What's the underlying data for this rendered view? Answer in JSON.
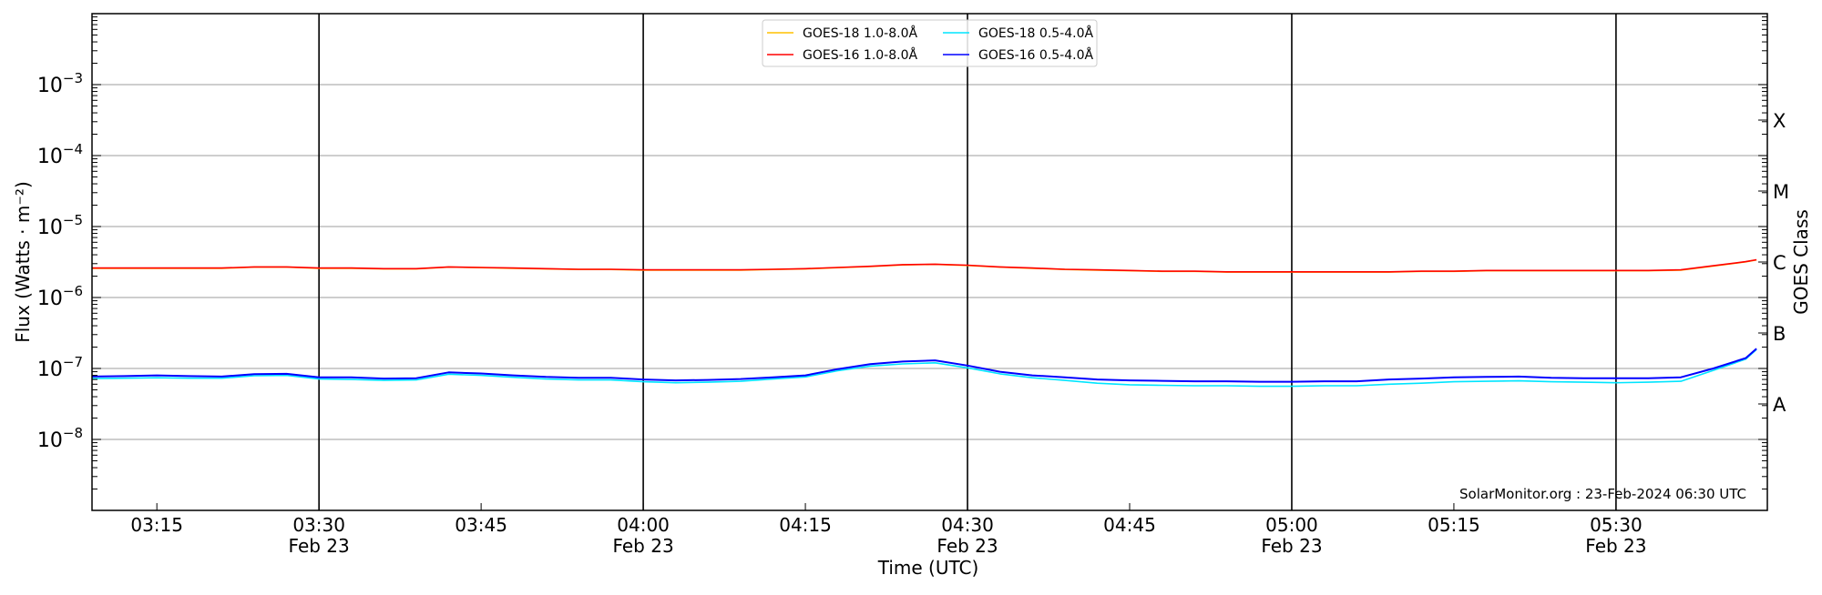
{
  "chart_data": {
    "type": "line",
    "title": "",
    "xlabel": "Time (UTC)",
    "ylabel": "Flux (Watts · m⁻²)",
    "y2label": "GOES Class",
    "yscale": "log",
    "ylim": [
      1e-09,
      0.01
    ],
    "xlim": [
      "03:09",
      "05:44"
    ],
    "grid": {
      "horizontal": true,
      "vertical_major": true
    },
    "legend_placement": "top-center",
    "y_ticks": [
      {
        "exp": -3,
        "label": "10",
        "sup": "−3"
      },
      {
        "exp": -4,
        "label": "10",
        "sup": "−4"
      },
      {
        "exp": -5,
        "label": "10",
        "sup": "−5"
      },
      {
        "exp": -6,
        "label": "10",
        "sup": "−6"
      },
      {
        "exp": -7,
        "label": "10",
        "sup": "−7"
      },
      {
        "exp": -8,
        "label": "10",
        "sup": "−8"
      }
    ],
    "goes_classes": [
      {
        "label": "X",
        "exp": -3.5
      },
      {
        "label": "M",
        "exp": -4.5
      },
      {
        "label": "C",
        "exp": -5.5
      },
      {
        "label": "B",
        "exp": -6.5
      },
      {
        "label": "A",
        "exp": -7.5
      }
    ],
    "x_ticks": [
      {
        "time": "03:15",
        "label": "03:15",
        "sub": ""
      },
      {
        "time": "03:30",
        "label": "03:30",
        "sub": "Feb 23"
      },
      {
        "time": "03:45",
        "label": "03:45",
        "sub": ""
      },
      {
        "time": "04:00",
        "label": "04:00",
        "sub": "Feb 23"
      },
      {
        "time": "04:15",
        "label": "04:15",
        "sub": ""
      },
      {
        "time": "04:30",
        "label": "04:30",
        "sub": "Feb 23"
      },
      {
        "time": "04:45",
        "label": "04:45",
        "sub": ""
      },
      {
        "time": "05:00",
        "label": "05:00",
        "sub": "Feb 23"
      },
      {
        "time": "05:15",
        "label": "05:15",
        "sub": ""
      },
      {
        "time": "05:30",
        "label": "05:30",
        "sub": "Feb 23"
      }
    ],
    "x": [
      "03:09",
      "03:12",
      "03:15",
      "03:18",
      "03:21",
      "03:24",
      "03:27",
      "03:30",
      "03:33",
      "03:36",
      "03:39",
      "03:42",
      "03:45",
      "03:48",
      "03:51",
      "03:54",
      "03:57",
      "04:00",
      "04:03",
      "04:06",
      "04:09",
      "04:12",
      "04:15",
      "04:18",
      "04:21",
      "04:24",
      "04:27",
      "04:30",
      "04:33",
      "04:36",
      "04:39",
      "04:42",
      "04:45",
      "04:48",
      "04:51",
      "04:54",
      "04:57",
      "05:00",
      "05:03",
      "05:06",
      "05:09",
      "05:12",
      "05:15",
      "05:18",
      "05:21",
      "05:24",
      "05:27",
      "05:30",
      "05:33",
      "05:36",
      "05:39",
      "05:42",
      "05:43"
    ],
    "series": [
      {
        "name": "GOES-18 1.0-8.0Å",
        "color": "#ffc000",
        "values": [
          2.58e-06,
          2.58e-06,
          2.58e-06,
          2.58e-06,
          2.58e-06,
          2.68e-06,
          2.68e-06,
          2.58e-06,
          2.58e-06,
          2.53e-06,
          2.53e-06,
          2.68e-06,
          2.63e-06,
          2.58e-06,
          2.53e-06,
          2.48e-06,
          2.48e-06,
          2.43e-06,
          2.43e-06,
          2.43e-06,
          2.43e-06,
          2.48e-06,
          2.53e-06,
          2.63e-06,
          2.73e-06,
          2.88e-06,
          2.93e-06,
          2.83e-06,
          2.68e-06,
          2.58e-06,
          2.48e-06,
          2.43e-06,
          2.38e-06,
          2.33e-06,
          2.33e-06,
          2.28e-06,
          2.28e-06,
          2.28e-06,
          2.28e-06,
          2.28e-06,
          2.28e-06,
          2.33e-06,
          2.33e-06,
          2.38e-06,
          2.38e-06,
          2.38e-06,
          2.38e-06,
          2.38e-06,
          2.38e-06,
          2.43e-06,
          2.78e-06,
          3.18e-06,
          3.38e-06
        ]
      },
      {
        "name": "GOES-16 1.0-8.0Å",
        "color": "#ff0000",
        "values": [
          2.6e-06,
          2.6e-06,
          2.6e-06,
          2.6e-06,
          2.6e-06,
          2.7e-06,
          2.7e-06,
          2.6e-06,
          2.6e-06,
          2.55e-06,
          2.55e-06,
          2.7e-06,
          2.65e-06,
          2.6e-06,
          2.55e-06,
          2.5e-06,
          2.5e-06,
          2.45e-06,
          2.45e-06,
          2.45e-06,
          2.45e-06,
          2.5e-06,
          2.55e-06,
          2.65e-06,
          2.75e-06,
          2.9e-06,
          2.95e-06,
          2.85e-06,
          2.7e-06,
          2.6e-06,
          2.5e-06,
          2.45e-06,
          2.4e-06,
          2.35e-06,
          2.35e-06,
          2.3e-06,
          2.3e-06,
          2.3e-06,
          2.3e-06,
          2.3e-06,
          2.3e-06,
          2.35e-06,
          2.35e-06,
          2.4e-06,
          2.4e-06,
          2.4e-06,
          2.4e-06,
          2.4e-06,
          2.4e-06,
          2.45e-06,
          2.8e-06,
          3.2e-06,
          3.4e-06
        ]
      },
      {
        "name": "GOES-18 0.5-4.0Å",
        "color": "#00e5ff",
        "values": [
          7.2e-08,
          7.3e-08,
          7.4e-08,
          7.3e-08,
          7.3e-08,
          7.9e-08,
          8e-08,
          7.1e-08,
          7e-08,
          6.8e-08,
          6.9e-08,
          8.3e-08,
          8e-08,
          7.5e-08,
          7.1e-08,
          6.9e-08,
          6.9e-08,
          6.5e-08,
          6.3e-08,
          6.4e-08,
          6.6e-08,
          7.1e-08,
          7.6e-08,
          9.3e-08,
          1.08e-07,
          1.16e-07,
          1.2e-07,
          1.02e-07,
          8.4e-08,
          7.4e-08,
          6.8e-08,
          6.2e-08,
          5.9e-08,
          5.8e-08,
          5.7e-08,
          5.7e-08,
          5.6e-08,
          5.6e-08,
          5.7e-08,
          5.7e-08,
          6e-08,
          6.2e-08,
          6.5e-08,
          6.6e-08,
          6.7e-08,
          6.5e-08,
          6.4e-08,
          6.3e-08,
          6.4e-08,
          6.6e-08,
          9.4e-08,
          1.35e-07,
          1.85e-07
        ]
      },
      {
        "name": "GOES-16 0.5-4.0Å",
        "color": "#0000ff",
        "values": [
          7.7e-08,
          7.8e-08,
          8e-08,
          7.8e-08,
          7.7e-08,
          8.3e-08,
          8.4e-08,
          7.5e-08,
          7.5e-08,
          7.2e-08,
          7.3e-08,
          8.8e-08,
          8.5e-08,
          8e-08,
          7.6e-08,
          7.4e-08,
          7.4e-08,
          7e-08,
          6.8e-08,
          6.9e-08,
          7.1e-08,
          7.5e-08,
          8e-08,
          9.8e-08,
          1.15e-07,
          1.25e-07,
          1.3e-07,
          1.1e-07,
          9e-08,
          8e-08,
          7.5e-08,
          7e-08,
          6.8e-08,
          6.7e-08,
          6.6e-08,
          6.6e-08,
          6.5e-08,
          6.5e-08,
          6.6e-08,
          6.6e-08,
          7e-08,
          7.2e-08,
          7.5e-08,
          7.6e-08,
          7.7e-08,
          7.4e-08,
          7.3e-08,
          7.3e-08,
          7.3e-08,
          7.5e-08,
          1e-07,
          1.4e-07,
          1.9e-07
        ]
      }
    ],
    "annotation": "SolarMonitor.org : 23-Feb-2024 06:30 UTC"
  }
}
